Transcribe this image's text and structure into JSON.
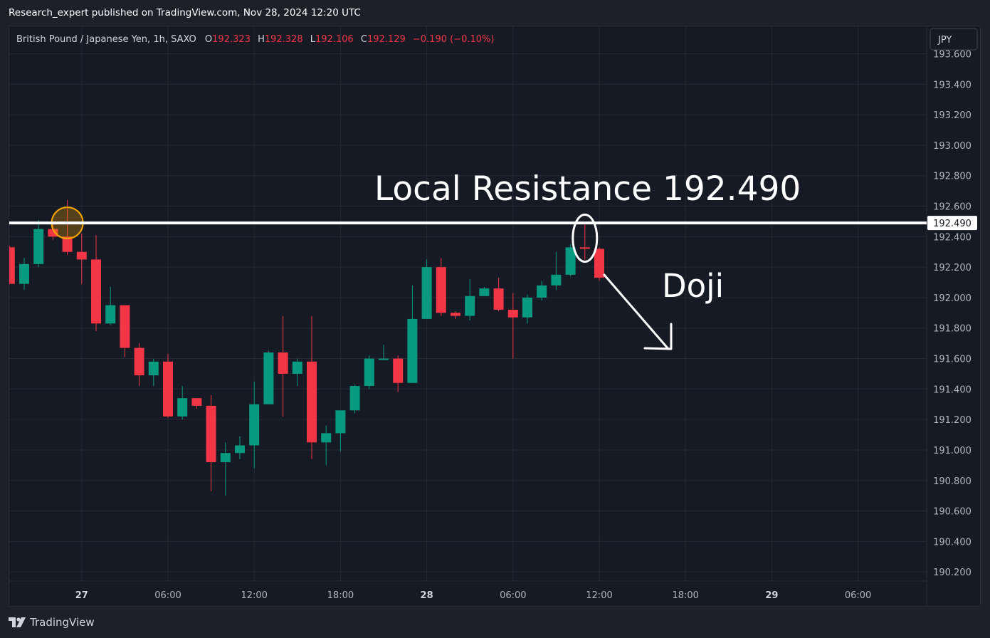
{
  "header": {
    "published_text": "Research_expert published on TradingView.com, Nov 28, 2024 12:20 UTC"
  },
  "legend": {
    "symbol": "British Pound / Japanese Yen, 1h, SAXO",
    "o_label": "O",
    "o_value": "192.323",
    "h_label": "H",
    "h_value": "192.328",
    "l_label": "L",
    "l_value": "192.106",
    "c_label": "C",
    "c_value": "192.129",
    "change": "−0.190 (−0.10%)"
  },
  "currency_button": "JPY",
  "footer": {
    "brand": "TradingView"
  },
  "colors": {
    "up": "#089981",
    "down": "#f23645",
    "text_axis": "#b2b5be",
    "grid": "#252934",
    "annotation": "#ffffff",
    "highlight": "#f7a600"
  },
  "chart_data": {
    "type": "candlestick",
    "symbol": "GBPJPY",
    "timeframe": "1h",
    "ylim": [
      190.14,
      193.78
    ],
    "y_ticks": [
      "193.600",
      "193.400",
      "193.200",
      "193.000",
      "192.800",
      "192.600",
      "192.400",
      "192.200",
      "192.000",
      "191.800",
      "191.600",
      "191.400",
      "191.200",
      "191.000",
      "190.800",
      "190.600",
      "190.400",
      "190.200"
    ],
    "x_ticks": [
      {
        "label": "27",
        "bar": 5,
        "bold": true
      },
      {
        "label": "06:00",
        "bar": 11,
        "bold": false
      },
      {
        "label": "12:00",
        "bar": 17,
        "bold": false
      },
      {
        "label": "18:00",
        "bar": 23,
        "bold": false
      },
      {
        "label": "28",
        "bar": 29,
        "bold": true
      },
      {
        "label": "06:00",
        "bar": 35,
        "bold": false
      },
      {
        "label": "12:00",
        "bar": 41,
        "bold": false
      },
      {
        "label": "18:00",
        "bar": 47,
        "bold": false
      },
      {
        "label": "29",
        "bar": 53,
        "bold": true
      },
      {
        "label": "06:00",
        "bar": 59,
        "bold": false
      }
    ],
    "candles": [
      {
        "o": 192.33,
        "h": 192.34,
        "l": 192.09,
        "c": 192.09
      },
      {
        "o": 192.09,
        "h": 192.26,
        "l": 192.05,
        "c": 192.22
      },
      {
        "o": 192.22,
        "h": 192.51,
        "l": 192.2,
        "c": 192.45
      },
      {
        "o": 192.45,
        "h": 192.49,
        "l": 192.38,
        "c": 192.4
      },
      {
        "o": 192.4,
        "h": 192.64,
        "l": 192.28,
        "c": 192.3
      },
      {
        "o": 192.3,
        "h": 192.42,
        "l": 192.09,
        "c": 192.25
      },
      {
        "o": 192.25,
        "h": 192.41,
        "l": 191.78,
        "c": 191.83
      },
      {
        "o": 191.83,
        "h": 192.07,
        "l": 191.82,
        "c": 191.95
      },
      {
        "o": 191.95,
        "h": 191.95,
        "l": 191.61,
        "c": 191.67
      },
      {
        "o": 191.67,
        "h": 191.7,
        "l": 191.42,
        "c": 191.49
      },
      {
        "o": 191.49,
        "h": 191.6,
        "l": 191.42,
        "c": 191.58
      },
      {
        "o": 191.58,
        "h": 191.63,
        "l": 191.21,
        "c": 191.22
      },
      {
        "o": 191.22,
        "h": 191.42,
        "l": 191.2,
        "c": 191.34
      },
      {
        "o": 191.34,
        "h": 191.34,
        "l": 191.27,
        "c": 191.29
      },
      {
        "o": 191.29,
        "h": 191.36,
        "l": 190.73,
        "c": 190.92
      },
      {
        "o": 190.92,
        "h": 191.05,
        "l": 190.7,
        "c": 190.98
      },
      {
        "o": 190.98,
        "h": 191.09,
        "l": 190.94,
        "c": 191.03
      },
      {
        "o": 191.03,
        "h": 191.45,
        "l": 190.88,
        "c": 191.3
      },
      {
        "o": 191.3,
        "h": 191.65,
        "l": 191.3,
        "c": 191.64
      },
      {
        "o": 191.64,
        "h": 191.88,
        "l": 191.22,
        "c": 191.5
      },
      {
        "o": 191.5,
        "h": 191.6,
        "l": 191.42,
        "c": 191.58
      },
      {
        "o": 191.58,
        "h": 191.88,
        "l": 190.94,
        "c": 191.05
      },
      {
        "o": 191.05,
        "h": 191.16,
        "l": 190.9,
        "c": 191.11
      },
      {
        "o": 191.11,
        "h": 191.25,
        "l": 190.99,
        "c": 191.26
      },
      {
        "o": 191.26,
        "h": 191.43,
        "l": 191.24,
        "c": 191.42
      },
      {
        "o": 191.42,
        "h": 191.62,
        "l": 191.4,
        "c": 191.6
      },
      {
        "o": 191.6,
        "h": 191.69,
        "l": 191.6,
        "c": 191.6
      },
      {
        "o": 191.6,
        "h": 191.62,
        "l": 191.38,
        "c": 191.44
      },
      {
        "o": 191.44,
        "h": 192.08,
        "l": 191.44,
        "c": 191.86
      },
      {
        "o": 191.86,
        "h": 192.25,
        "l": 191.86,
        "c": 192.2
      },
      {
        "o": 192.2,
        "h": 192.26,
        "l": 191.88,
        "c": 191.9
      },
      {
        "o": 191.9,
        "h": 191.91,
        "l": 191.86,
        "c": 191.88
      },
      {
        "o": 191.88,
        "h": 192.12,
        "l": 191.85,
        "c": 192.01
      },
      {
        "o": 192.01,
        "h": 192.07,
        "l": 192.01,
        "c": 192.06
      },
      {
        "o": 192.06,
        "h": 192.13,
        "l": 191.91,
        "c": 191.92
      },
      {
        "o": 191.92,
        "h": 192.03,
        "l": 191.6,
        "c": 191.87
      },
      {
        "o": 191.87,
        "h": 192.02,
        "l": 191.83,
        "c": 192.0
      },
      {
        "o": 192.0,
        "h": 192.11,
        "l": 191.98,
        "c": 192.08
      },
      {
        "o": 192.08,
        "h": 192.3,
        "l": 192.05,
        "c": 192.15
      },
      {
        "o": 192.15,
        "h": 192.35,
        "l": 192.14,
        "c": 192.33
      },
      {
        "o": 192.33,
        "h": 192.49,
        "l": 192.25,
        "c": 192.32
      },
      {
        "o": 192.32,
        "h": 192.33,
        "l": 192.11,
        "c": 192.13
      }
    ],
    "resistance_level": 192.49,
    "resistance_label": "192.490",
    "annotations": {
      "resistance_title": "Local Resistance 192.490",
      "doji_label": "Doji"
    }
  }
}
